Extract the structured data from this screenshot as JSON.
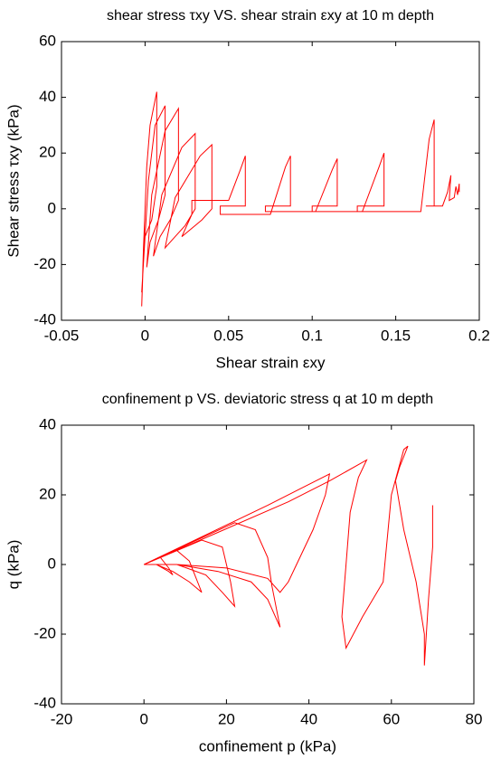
{
  "chart_data": [
    {
      "type": "line",
      "title": "shear stress τxy VS. shear strain εxy at 10 m depth",
      "xlabel": "Shear strain εxy",
      "ylabel": "Shear stress τxy (kPa)",
      "color": "#ff0000",
      "xlim": [
        -0.05,
        0.2
      ],
      "xticks": [
        -0.05,
        0,
        0.05,
        0.1,
        0.15,
        0.2
      ],
      "ylim": [
        -40,
        60
      ],
      "yticks": [
        -40,
        -20,
        0,
        20,
        40,
        60
      ],
      "x": [
        0,
        -0.002,
        -0.001,
        0.001,
        0.003,
        0.007,
        0.007,
        0.004,
        0,
        -0.002,
        -0.001,
        0.002,
        0.006,
        0.012,
        0.012,
        0.008,
        0.003,
        0.001,
        0.004,
        0.012,
        0.02,
        0.02,
        0.015,
        0.009,
        0.005,
        0.01,
        0.022,
        0.03,
        0.03,
        0.024,
        0.018,
        0.012,
        0.018,
        0.033,
        0.04,
        0.04,
        0.034,
        0.028,
        0.022,
        0.028,
        0.028,
        0.05,
        0.057,
        0.06,
        0.06,
        0.045,
        0.045,
        0.05,
        0.075,
        0.084,
        0.087,
        0.087,
        0.072,
        0.072,
        0.076,
        0.102,
        0.112,
        0.115,
        0.115,
        0.1,
        0.1,
        0.104,
        0.13,
        0.14,
        0.143,
        0.143,
        0.127,
        0.127,
        0.131,
        0.165,
        0.17,
        0.173,
        0.173,
        0.168,
        0.178,
        0.181,
        0.183,
        0.182,
        0.185,
        0.186,
        0.187,
        0.188,
        0.188
      ],
      "values": [
        0,
        -35,
        -15,
        15,
        30,
        42,
        8,
        -4,
        -10,
        -30,
        -20,
        10,
        30,
        37,
        5,
        -4,
        -12,
        -21,
        5,
        28,
        36,
        3,
        -4,
        -10,
        -17,
        5,
        22,
        27,
        0,
        -6,
        -10,
        -14,
        4,
        19,
        23,
        0,
        -4,
        -7,
        -10,
        -2,
        3,
        3,
        14,
        19,
        1,
        1,
        -2,
        -2,
        -2,
        15,
        19,
        1,
        1,
        -1,
        -1,
        -1,
        14,
        18,
        1,
        1,
        -1,
        -1,
        -1,
        15,
        20,
        1,
        1,
        -1,
        -1,
        -1,
        25,
        32,
        1,
        1,
        1,
        6,
        12,
        3,
        4,
        8,
        5,
        9,
        6
      ]
    },
    {
      "type": "line",
      "title": "confinement p VS. deviatoric stress q at 10 m depth",
      "xlabel": "confinement p (kPa)",
      "ylabel": "q (kPa)",
      "color": "#ff0000",
      "xlim": [
        -20,
        80
      ],
      "xticks": [
        -20,
        0,
        20,
        40,
        60,
        80
      ],
      "ylim": [
        -40,
        40
      ],
      "yticks": [
        -40,
        -20,
        0,
        20,
        40
      ],
      "x": [
        0,
        4,
        6,
        7,
        6,
        3,
        1,
        0,
        8,
        11,
        13,
        14,
        11,
        7,
        3,
        0,
        14,
        19,
        21,
        22,
        19,
        15,
        8,
        2,
        0,
        22,
        27,
        30,
        31,
        33,
        30,
        26,
        18,
        8,
        0,
        30,
        40,
        45,
        44,
        41,
        37,
        35,
        33,
        30,
        20,
        8,
        0,
        35,
        45,
        54,
        52,
        50,
        49,
        48,
        49,
        53,
        58,
        60,
        63,
        64,
        62,
        61,
        63,
        66,
        68,
        68,
        69,
        70,
        70
      ],
      "values": [
        0,
        2,
        -1,
        -3,
        -2,
        0,
        0,
        0,
        4,
        1,
        -5,
        -8,
        -5,
        -2,
        0,
        0,
        7,
        5,
        -5,
        -12,
        -8,
        -3,
        0,
        0,
        0,
        12,
        10,
        2,
        -6,
        -18,
        -10,
        -5,
        -2,
        0,
        0,
        17,
        23,
        26,
        20,
        10,
        0,
        -5,
        -8,
        -4,
        -1,
        0,
        0,
        18,
        24,
        30,
        25,
        15,
        0,
        -15,
        -24,
        -15,
        -5,
        20,
        33,
        34,
        28,
        24,
        10,
        -5,
        -20,
        -29,
        -10,
        5,
        17
      ]
    }
  ]
}
